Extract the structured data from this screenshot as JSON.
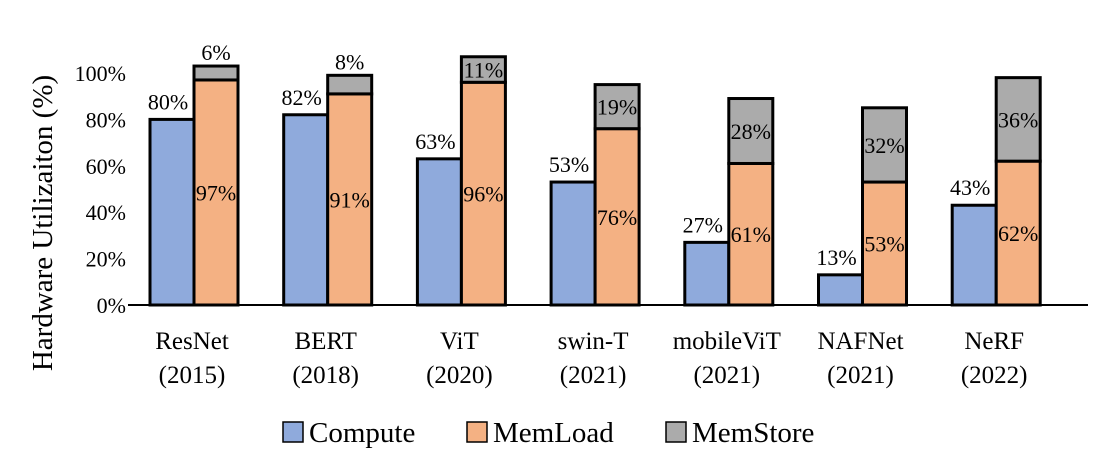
{
  "chart_data": {
    "type": "bar",
    "stacked_group": "Compute beside stacked MemLoad + MemStore",
    "ylabel": "Hardware Utilizaiton (%)",
    "ylim": [
      0,
      100
    ],
    "yticks": [
      "0%",
      "20%",
      "40%",
      "60%",
      "80%",
      "100%"
    ],
    "categories": [
      [
        "ResNet",
        "(2015)"
      ],
      [
        "BERT",
        "(2018)"
      ],
      [
        "ViT",
        "(2020)"
      ],
      [
        "swin-T",
        "(2021)"
      ],
      [
        "mobileViT",
        "(2021)"
      ],
      [
        "NAFNet",
        "(2021)"
      ],
      [
        "NeRF",
        "(2022)"
      ]
    ],
    "series": [
      {
        "name": "Compute",
        "color": "#8FAADC",
        "values": [
          80,
          82,
          63,
          53,
          27,
          13,
          43
        ],
        "labels": [
          "80%",
          "82%",
          "63%",
          "53%",
          "27%",
          "13%",
          "43%"
        ]
      },
      {
        "name": "MemLoad",
        "color": "#F4B183",
        "values": [
          97,
          91,
          96,
          76,
          61,
          53,
          62
        ],
        "labels": [
          "97%",
          "91%",
          "96%",
          "76%",
          "61%",
          "53%",
          "62%"
        ]
      },
      {
        "name": "MemStore",
        "color": "#ABABAB",
        "values": [
          6,
          8,
          11,
          19,
          28,
          32,
          36
        ],
        "labels": [
          "6%",
          "8%",
          "11%",
          "19%",
          "28%",
          "32%",
          "36%"
        ]
      }
    ],
    "legend_position": "bottom",
    "grid": false
  }
}
